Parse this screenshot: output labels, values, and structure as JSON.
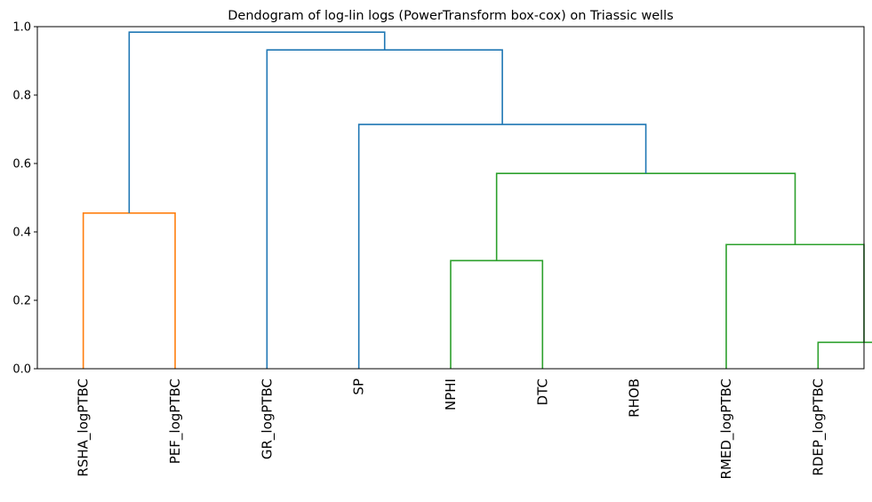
{
  "chart_data": {
    "type": "dendrogram",
    "title": "Dendogram of log-lin logs (PowerTransform box-cox) on Triassic wells",
    "xlabel": "",
    "ylabel": "",
    "ylim": [
      0,
      1.0
    ],
    "y_ticks": [
      0.0,
      0.2,
      0.4,
      0.6,
      0.8,
      1.0
    ],
    "y_tick_labels": [
      "0.0",
      "0.2",
      "0.4",
      "0.6",
      "0.8",
      "1.0"
    ],
    "leaves": [
      "RSHA_logPTBC",
      "PEF_logPTBC",
      "GR_logPTBC",
      "SP",
      "NPHI",
      "DTC",
      "RHOB",
      "RMED_logPTBC",
      "RDEP_logPTBC"
    ],
    "links": [
      {
        "icoord": [
          85,
          85,
          95,
          95
        ],
        "dcoord": [
          0.0,
          0.077,
          0.077,
          0.0
        ],
        "color": "#2ca02c"
      },
      {
        "icoord": [
          75,
          75,
          90,
          90
        ],
        "dcoord": [
          0.0,
          0.363,
          0.363,
          0.077
        ],
        "color": "#2ca02c"
      },
      {
        "icoord": [
          45,
          45,
          55,
          55
        ],
        "dcoord": [
          0.0,
          0.316,
          0.316,
          0.0
        ],
        "color": "#2ca02c"
      },
      {
        "icoord": [
          50,
          50,
          82.5,
          82.5
        ],
        "dcoord": [
          0.316,
          0.571,
          0.571,
          0.363
        ],
        "color": "#2ca02c"
      },
      {
        "icoord": [
          35,
          35,
          66.25,
          66.25
        ],
        "dcoord": [
          0.0,
          0.714,
          0.714,
          0.571
        ],
        "color": "#1f77b4"
      },
      {
        "icoord": [
          25,
          25,
          50.625,
          50.625
        ],
        "dcoord": [
          0.0,
          0.932,
          0.932,
          0.714
        ],
        "color": "#1f77b4"
      },
      {
        "icoord": [
          5,
          5,
          15,
          15
        ],
        "dcoord": [
          0.0,
          0.455,
          0.455,
          0.0
        ],
        "color": "#ff7f0e"
      },
      {
        "icoord": [
          10,
          10,
          37.8125,
          37.8125
        ],
        "dcoord": [
          0.455,
          0.984,
          0.984,
          0.932
        ],
        "color": "#1f77b4"
      }
    ],
    "grid": false,
    "legend": "none"
  }
}
